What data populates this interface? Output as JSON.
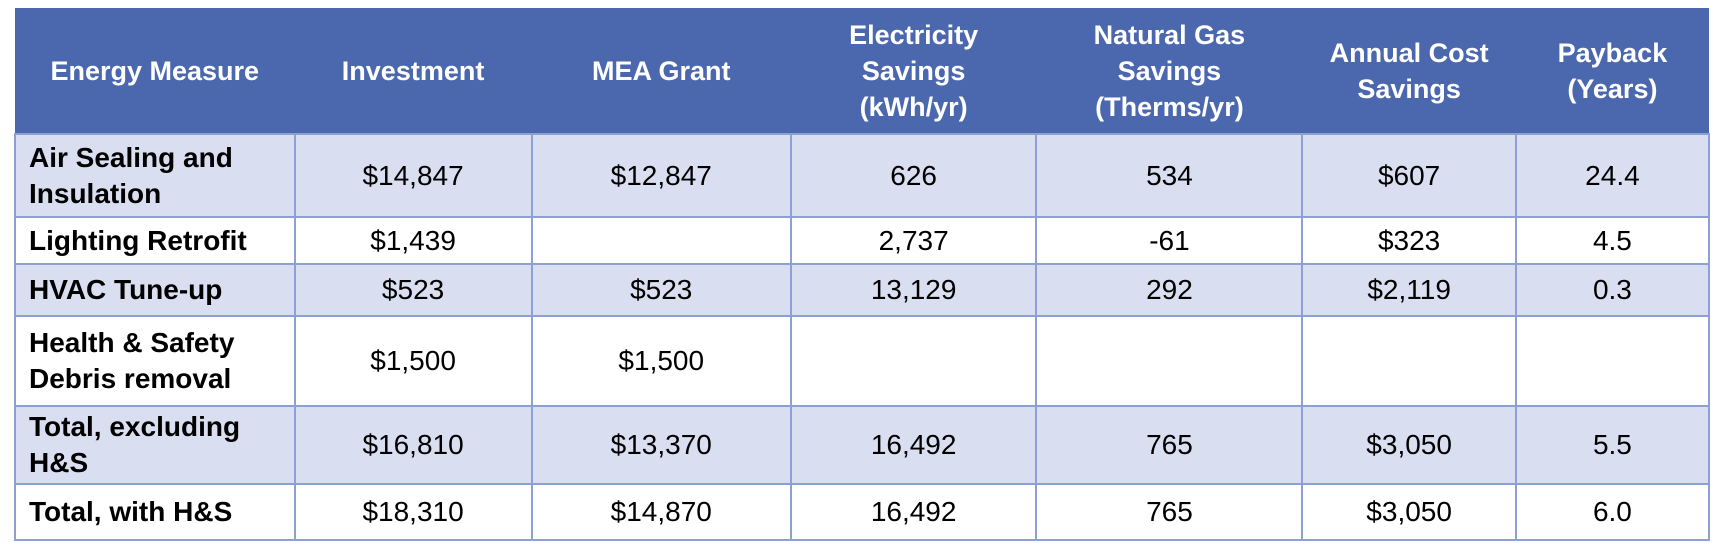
{
  "table": {
    "name": "energy-measures-summary-table",
    "header": {
      "text_color": "#FFFFFF",
      "background_color": "#4B68AE",
      "columns": [
        "Energy Measure",
        "Investment",
        "MEA Grant",
        "Electricity\nSavings\n(kWh/yr)",
        "Natural Gas\nSavings\n(Therms/yr)",
        "Annual Cost\nSavings",
        "Payback\n(Years)"
      ]
    },
    "rows": [
      {
        "measure": "Air Sealing and\nInsulation",
        "investment": "$14,847",
        "mea_grant": "$12,847",
        "electricity_savings_kwh_yr": "626",
        "natural_gas_savings_therms_yr": "534",
        "annual_cost_savings": "$607",
        "payback_years": "24.4"
      },
      {
        "measure": "Lighting Retrofit",
        "investment": "$1,439",
        "mea_grant": "",
        "electricity_savings_kwh_yr": "2,737",
        "natural_gas_savings_therms_yr": "-61",
        "annual_cost_savings": "$323",
        "payback_years": "4.5"
      },
      {
        "measure": "HVAC Tune-up",
        "investment": "$523",
        "mea_grant": "$523",
        "electricity_savings_kwh_yr": "13,129",
        "natural_gas_savings_therms_yr": "292",
        "annual_cost_savings": "$2,119",
        "payback_years": "0.3"
      },
      {
        "measure": "Health & Safety\nDebris removal",
        "investment": "$1,500",
        "mea_grant": "$1,500",
        "electricity_savings_kwh_yr": "",
        "natural_gas_savings_therms_yr": "",
        "annual_cost_savings": "",
        "payback_years": ""
      },
      {
        "measure": "Total, excluding\nH&S",
        "investment": "$16,810",
        "mea_grant": "$13,370",
        "electricity_savings_kwh_yr": "16,492",
        "natural_gas_savings_therms_yr": "765",
        "annual_cost_savings": "$3,050",
        "payback_years": "5.5"
      },
      {
        "measure": "Total, with H&S",
        "investment": "$18,310",
        "mea_grant": "$14,870",
        "electricity_savings_kwh_yr": "16,492",
        "natural_gas_savings_therms_yr": "765",
        "annual_cost_savings": "$3,050",
        "payback_years": "6.0"
      }
    ],
    "colors": {
      "header_background": "#4B68AE",
      "header_text": "#FFFFFF",
      "banded_row_background": "#D9DEF0",
      "plain_row_background": "#FFFFFF",
      "grid_border": "#8DA0D2",
      "body_text": "#000000"
    }
  }
}
